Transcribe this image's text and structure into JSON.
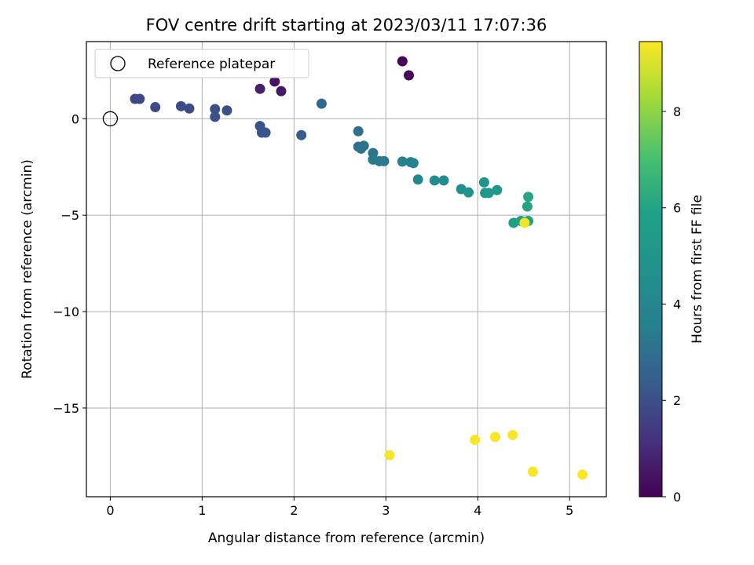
{
  "chart_data": {
    "type": "scatter",
    "title": "FOV centre drift starting at 2023/03/11 17:07:36",
    "xlabel": "Angular distance from reference (arcmin)",
    "ylabel": "Rotation from reference (arcmin)",
    "xlim": [
      -0.26,
      5.4
    ],
    "ylim": [
      -19.6,
      4.0
    ],
    "xticks": [
      0,
      1,
      2,
      3,
      4,
      5
    ],
    "yticks": [
      0,
      -5,
      -10,
      -15
    ],
    "grid": true,
    "legend": {
      "label": "Reference platepar",
      "location": "upper-left",
      "marker": "open-circle"
    },
    "reference_point": {
      "x": 0,
      "y": 0
    },
    "colorbar": {
      "label": "Hours from first FF file",
      "colormap": "viridis",
      "range": [
        0,
        9.45
      ],
      "ticks": [
        0,
        2,
        4,
        6,
        8
      ]
    },
    "series": [
      {
        "points": [
          {
            "x": 3.18,
            "y": 2.98,
            "hours": 0.05
          },
          {
            "x": 3.25,
            "y": 2.25,
            "hours": 0.15
          },
          {
            "x": 1.79,
            "y": 1.93,
            "hours": 0.45
          },
          {
            "x": 1.86,
            "y": 1.43,
            "hours": 0.55
          },
          {
            "x": 1.63,
            "y": 1.55,
            "hours": 0.75
          },
          {
            "x": 0.27,
            "y": 1.03,
            "hours": 1.75
          },
          {
            "x": 0.32,
            "y": 1.03,
            "hours": 1.8
          },
          {
            "x": 0.49,
            "y": 0.6,
            "hours": 1.85
          },
          {
            "x": 0.77,
            "y": 0.65,
            "hours": 1.9
          },
          {
            "x": 0.86,
            "y": 0.53,
            "hours": 1.9
          },
          {
            "x": 1.14,
            "y": 0.5,
            "hours": 2.0
          },
          {
            "x": 1.27,
            "y": 0.43,
            "hours": 2.0
          },
          {
            "x": 1.14,
            "y": 0.1,
            "hours": 2.05
          },
          {
            "x": 1.63,
            "y": -0.38,
            "hours": 2.1
          },
          {
            "x": 1.65,
            "y": -0.72,
            "hours": 2.15
          },
          {
            "x": 1.69,
            "y": -0.72,
            "hours": 2.2
          },
          {
            "x": 2.08,
            "y": -0.85,
            "hours": 2.4
          },
          {
            "x": 2.3,
            "y": 0.78,
            "hours": 2.85
          },
          {
            "x": 2.7,
            "y": -0.65,
            "hours": 3.0
          },
          {
            "x": 2.7,
            "y": -1.45,
            "hours": 3.05
          },
          {
            "x": 2.73,
            "y": -1.55,
            "hours": 3.1
          },
          {
            "x": 2.76,
            "y": -1.4,
            "hours": 3.15
          },
          {
            "x": 2.86,
            "y": -1.78,
            "hours": 3.25
          },
          {
            "x": 2.86,
            "y": -2.12,
            "hours": 3.3
          },
          {
            "x": 2.93,
            "y": -2.2,
            "hours": 3.35
          },
          {
            "x": 2.98,
            "y": -2.2,
            "hours": 3.4
          },
          {
            "x": 3.18,
            "y": -2.22,
            "hours": 3.6
          },
          {
            "x": 3.27,
            "y": -2.25,
            "hours": 3.7
          },
          {
            "x": 3.3,
            "y": -2.3,
            "hours": 3.75
          },
          {
            "x": 3.35,
            "y": -3.15,
            "hours": 4.0
          },
          {
            "x": 3.53,
            "y": -3.2,
            "hours": 4.3
          },
          {
            "x": 3.63,
            "y": -3.2,
            "hours": 4.4
          },
          {
            "x": 3.82,
            "y": -3.65,
            "hours": 4.6
          },
          {
            "x": 3.9,
            "y": -3.82,
            "hours": 4.7
          },
          {
            "x": 4.07,
            "y": -3.3,
            "hours": 4.9
          },
          {
            "x": 4.08,
            "y": -3.85,
            "hours": 5.1
          },
          {
            "x": 4.12,
            "y": -3.85,
            "hours": 5.15
          },
          {
            "x": 4.21,
            "y": -3.7,
            "hours": 5.3
          },
          {
            "x": 4.39,
            "y": -5.4,
            "hours": 5.7
          },
          {
            "x": 4.47,
            "y": -5.3,
            "hours": 5.8
          },
          {
            "x": 4.52,
            "y": -5.35,
            "hours": 5.85
          },
          {
            "x": 4.55,
            "y": -5.3,
            "hours": 5.9
          },
          {
            "x": 4.54,
            "y": -4.55,
            "hours": 6.0
          },
          {
            "x": 4.55,
            "y": -4.05,
            "hours": 6.05
          },
          {
            "x": 4.51,
            "y": -5.4,
            "hours": 9.3
          },
          {
            "x": 3.04,
            "y": -17.45,
            "hours": 9.35
          },
          {
            "x": 3.97,
            "y": -16.65,
            "hours": 9.4
          },
          {
            "x": 4.19,
            "y": -16.5,
            "hours": 9.4
          },
          {
            "x": 4.38,
            "y": -16.4,
            "hours": 9.4
          },
          {
            "x": 4.6,
            "y": -18.3,
            "hours": 9.4
          },
          {
            "x": 5.14,
            "y": -18.45,
            "hours": 9.45
          }
        ]
      }
    ]
  }
}
